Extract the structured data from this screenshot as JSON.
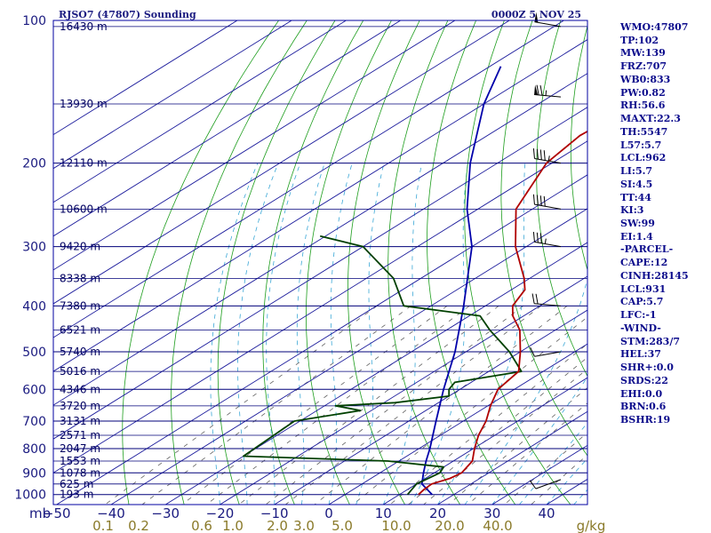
{
  "header": {
    "station": "RJSO7 (47807) Sounding",
    "time": "0000Z  5 NOV 25"
  },
  "stats": [
    "WMO:47807",
    "TP:102",
    "MW:139",
    "FRZ:707",
    "WB0:833",
    "PW:0.82",
    "RH:56.6",
    "MAXT:22.3",
    "TH:5547",
    "L57:5.7",
    "LCL:962",
    "LI:5.7",
    "SI:4.5",
    "TT:44",
    "KI:3",
    "SW:99",
    "EI:1.4",
    "-PARCEL-",
    "CAPE:12",
    "CINH:28145",
    "LCL:931",
    "CAP:5.7",
    "LFC:-1",
    "-WIND-",
    "STM:283/7",
    "HEL:37",
    "SHR+:0.0",
    "SRDS:22",
    "EHI:0.0",
    "BRN:0.6",
    "BSHR:19"
  ],
  "chart_data": {
    "type": "skew-t",
    "pressure_unit": "mb",
    "pressure_levels": [
      100,
      200,
      300,
      400,
      500,
      600,
      700,
      800,
      900,
      1000
    ],
    "pressure_labels": [
      "100",
      "200",
      "300",
      "400",
      "500",
      "600",
      "700",
      "800",
      "900",
      "1000"
    ],
    "height_levels": [
      {
        "p": 103,
        "h": "16430 m"
      },
      {
        "p": 150,
        "h": "13930 m"
      },
      {
        "p": 200,
        "h": "12110 m"
      },
      {
        "p": 250,
        "h": "10600 m"
      },
      {
        "p": 300,
        "h": "9420 m"
      },
      {
        "p": 350,
        "h": "8338 m"
      },
      {
        "p": 400,
        "h": "7380 m"
      },
      {
        "p": 450,
        "h": "6521 m"
      },
      {
        "p": 500,
        "h": "5740 m"
      },
      {
        "p": 550,
        "h": "5016 m"
      },
      {
        "p": 600,
        "h": "4346 m"
      },
      {
        "p": 650,
        "h": "3720 m"
      },
      {
        "p": 700,
        "h": "3131 m"
      },
      {
        "p": 750,
        "h": "2571 m"
      },
      {
        "p": 800,
        "h": "2047 m"
      },
      {
        "p": 850,
        "h": "1553 m"
      },
      {
        "p": 900,
        "h": "1078 m"
      },
      {
        "p": 950,
        "h": "625 m"
      },
      {
        "p": 1000,
        "h": "193 m"
      }
    ],
    "temperature_ticks": [
      -50,
      -40,
      -30,
      -20,
      -10,
      0,
      10,
      20,
      30,
      40
    ],
    "temperature_labels": [
      "−50",
      "−40",
      "−30",
      "−20",
      "−10",
      "0",
      "10",
      "20",
      "30",
      "40"
    ],
    "mixing_ratio_labels": [
      "0.1",
      "0.2",
      "0.6",
      "1.0",
      "2.0",
      "3.0",
      "5.0",
      "10.0",
      "20.0",
      "40.0",
      "g/kg"
    ],
    "temperature_profile": [
      {
        "p": 1000,
        "t": 13.5
      },
      {
        "p": 975,
        "t": 13.0
      },
      {
        "p": 950,
        "t": 12.8
      },
      {
        "p": 925,
        "t": 14.5
      },
      {
        "p": 900,
        "t": 15.0
      },
      {
        "p": 850,
        "t": 13.5
      },
      {
        "p": 800,
        "t": 10.2
      },
      {
        "p": 750,
        "t": 7.0
      },
      {
        "p": 700,
        "t": 4.2
      },
      {
        "p": 650,
        "t": 0.5
      },
      {
        "p": 600,
        "t": -3.0
      },
      {
        "p": 550,
        "t": -4.5
      },
      {
        "p": 500,
        "t": -10.0
      },
      {
        "p": 450,
        "t": -16.5
      },
      {
        "p": 420,
        "t": -22.0
      },
      {
        "p": 400,
        "t": -25.0
      },
      {
        "p": 370,
        "t": -27.5
      },
      {
        "p": 350,
        "t": -31.0
      },
      {
        "p": 300,
        "t": -42.0
      },
      {
        "p": 250,
        "t": -53.0
      },
      {
        "p": 200,
        "t": -61.0
      },
      {
        "p": 175,
        "t": -63.0
      },
      {
        "p": 150,
        "t": -62.0
      },
      {
        "p": 125,
        "t": -62.0
      },
      {
        "p": 100,
        "t": -63.0
      }
    ],
    "dewpoint_profile": [
      {
        "p": 1000,
        "t": 11.5
      },
      {
        "p": 950,
        "t": 10.0
      },
      {
        "p": 900,
        "t": 11.0
      },
      {
        "p": 875,
        "t": 10.0
      },
      {
        "p": 850,
        "t": -2.0
      },
      {
        "p": 830,
        "t": -30.0
      },
      {
        "p": 700,
        "t": -31.0
      },
      {
        "p": 665,
        "t": -22.0
      },
      {
        "p": 650,
        "t": -28.0
      },
      {
        "p": 640,
        "t": -18.0
      },
      {
        "p": 620,
        "t": -10.0
      },
      {
        "p": 600,
        "t": -12.0
      },
      {
        "p": 580,
        "t": -13.0
      },
      {
        "p": 550,
        "t": -4.0
      },
      {
        "p": 500,
        "t": -12.0
      },
      {
        "p": 450,
        "t": -22.0
      },
      {
        "p": 420,
        "t": -28.0
      },
      {
        "p": 400,
        "t": -45.0
      },
      {
        "p": 350,
        "t": -55.0
      },
      {
        "p": 300,
        "t": -70.0
      },
      {
        "p": 285,
        "t": -81.0
      }
    ],
    "parcel_profile": [
      {
        "p": 1000,
        "t": 16.0
      },
      {
        "p": 950,
        "t": 11.0
      },
      {
        "p": 900,
        "t": 8.0
      },
      {
        "p": 850,
        "t": 5.0
      },
      {
        "p": 800,
        "t": 2.0
      },
      {
        "p": 700,
        "t": -5.0
      },
      {
        "p": 600,
        "t": -13.0
      },
      {
        "p": 500,
        "t": -22.0
      },
      {
        "p": 400,
        "t": -34.0
      },
      {
        "p": 300,
        "t": -50.0
      },
      {
        "p": 250,
        "t": -62.0
      },
      {
        "p": 200,
        "t": -75.0
      },
      {
        "p": 150,
        "t": -90.0
      },
      {
        "p": 125,
        "t": -98.0
      }
    ],
    "wind_barbs": [
      {
        "p": 103,
        "dir": 280,
        "spd": 50
      },
      {
        "p": 145,
        "dir": 275,
        "spd": 75
      },
      {
        "p": 200,
        "dir": 280,
        "spd": 45
      },
      {
        "p": 250,
        "dir": 280,
        "spd": 40
      },
      {
        "p": 300,
        "dir": 280,
        "spd": 35
      },
      {
        "p": 400,
        "dir": 275,
        "spd": 20
      },
      {
        "p": 500,
        "dir": 260,
        "spd": 10
      },
      {
        "p": 930,
        "dir": 250,
        "spd": 10
      }
    ],
    "colors": {
      "temperature": "#b00000",
      "dewpoint": "#004000",
      "parcel": "#0000aa",
      "isobar": "#00007a",
      "isotherm": "#1c1c9c",
      "dry_adiabat": "#1d9d1d",
      "moist_adiabat": "#3aa7d6",
      "mixing_ratio": "#606060",
      "frame": "#0000a0"
    }
  }
}
